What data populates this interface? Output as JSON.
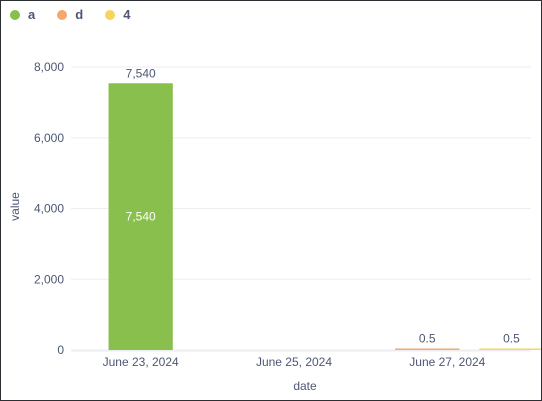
{
  "chart_data": {
    "type": "bar",
    "title": "",
    "xlabel": "date",
    "ylabel": "value",
    "ylim": [
      0,
      8000
    ],
    "yticks": [
      0,
      2000,
      4000,
      6000,
      8000
    ],
    "ytick_labels": [
      "0",
      "2,000",
      "4,000",
      "6,000",
      "8,000"
    ],
    "categories": [
      "June 23, 2024",
      "June 25, 2024",
      "June 27, 2024"
    ],
    "series": [
      {
        "name": "a",
        "color": "#88bf4d",
        "values": [
          7540,
          null,
          null
        ],
        "labels": [
          "7,540",
          null,
          null
        ],
        "inner_labels": [
          "7,540",
          null,
          null
        ]
      },
      {
        "name": "d",
        "color": "#f2a86f",
        "values": [
          null,
          null,
          0.5
        ],
        "labels": [
          null,
          null,
          "0.5"
        ],
        "inner_labels": [
          null,
          null,
          null
        ]
      },
      {
        "name": "4",
        "color": "#f9d45c",
        "values": [
          null,
          null,
          0.5
        ],
        "labels": [
          null,
          null,
          "0.5"
        ],
        "inner_labels": [
          null,
          null,
          null
        ]
      }
    ],
    "grid": true,
    "legend_position": "top-left"
  },
  "legend": [
    {
      "label": "a",
      "color": "#88bf4d"
    },
    {
      "label": "d",
      "color": "#f2a86f"
    },
    {
      "label": "4",
      "color": "#f9d45c"
    }
  ]
}
